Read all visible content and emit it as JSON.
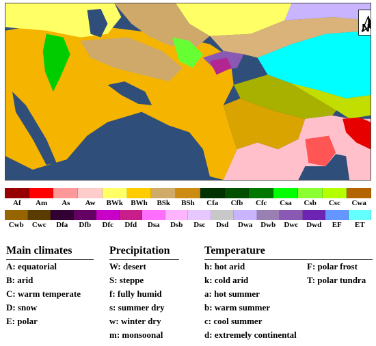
{
  "map": {
    "north_letter": "N",
    "colors": {
      "sea": "#2f4f7a",
      "BWh": "#f5b400",
      "BWk": "#ffff66",
      "BSh": "#d9a300",
      "BSk": "#cfa969",
      "Cwa": "#a8b000",
      "Cfa": "#c2dd00",
      "Dfc": "#b32591",
      "ET": "#00ffff",
      "Aw": "#ffc0cb",
      "Am": "#ff0000",
      "Csa": "#00cc00"
    }
  },
  "legend": {
    "row1": [
      {
        "code": "Af",
        "color": "#960000"
      },
      {
        "code": "Am",
        "color": "#ff0000"
      },
      {
        "code": "As",
        "color": "#ff9999"
      },
      {
        "code": "Aw",
        "color": "#ffcccc"
      },
      {
        "code": "BWk",
        "color": "#ffff66"
      },
      {
        "code": "BWh",
        "color": "#ffcc00"
      },
      {
        "code": "BSk",
        "color": "#cfaa69"
      },
      {
        "code": "BSh",
        "color": "#cc8c14"
      },
      {
        "code": "Cfa",
        "color": "#003300"
      },
      {
        "code": "Cfb",
        "color": "#005000"
      },
      {
        "code": "Cfc",
        "color": "#007800"
      },
      {
        "code": "Csa",
        "color": "#00ff00"
      },
      {
        "code": "Csb",
        "color": "#8cff32"
      },
      {
        "code": "Csc",
        "color": "#b4ff00"
      },
      {
        "code": "Cwa",
        "color": "#b46400"
      }
    ],
    "row2": [
      {
        "code": "Cwb",
        "color": "#966400"
      },
      {
        "code": "Cwc",
        "color": "#5a3c00"
      },
      {
        "code": "Dfa",
        "color": "#320032"
      },
      {
        "code": "Dfb",
        "color": "#640064"
      },
      {
        "code": "Dfc",
        "color": "#c800c8"
      },
      {
        "code": "Dfd",
        "color": "#c81e8c"
      },
      {
        "code": "Dsa",
        "color": "#ff6eff"
      },
      {
        "code": "Dsb",
        "color": "#ffb4ff"
      },
      {
        "code": "Dsc",
        "color": "#e6c8ff"
      },
      {
        "code": "Dsd",
        "color": "#c8c8c8"
      },
      {
        "code": "Dwa",
        "color": "#c8b4ff"
      },
      {
        "code": "Dwb",
        "color": "#9a7fb3"
      },
      {
        "code": "Dwc",
        "color": "#8a59b3"
      },
      {
        "code": "Dwd",
        "color": "#6d24b3"
      },
      {
        "code": "EF",
        "color": "#6496ff"
      },
      {
        "code": "ET",
        "color": "#64ffff"
      }
    ]
  },
  "key": {
    "main": {
      "title": "Main climates",
      "items": [
        "A: equatorial",
        "B: arid",
        "C: warm temperate",
        "D: snow",
        "E: polar"
      ]
    },
    "precipitation": {
      "title": "Precipitation",
      "items": [
        "W: desert",
        "S: steppe",
        "f: fully humid",
        "s: summer dry",
        "w: winter dry",
        "m: monsoonal"
      ]
    },
    "temperature": {
      "title": "Temperature",
      "left_items": [
        "h: hot arid",
        "k: cold arid",
        "a: hot summer",
        "b: warm summer",
        "c: cool summer",
        "d: extremely continental"
      ],
      "right_items": [
        "F: polar frost",
        "T: polar tundra"
      ]
    }
  }
}
